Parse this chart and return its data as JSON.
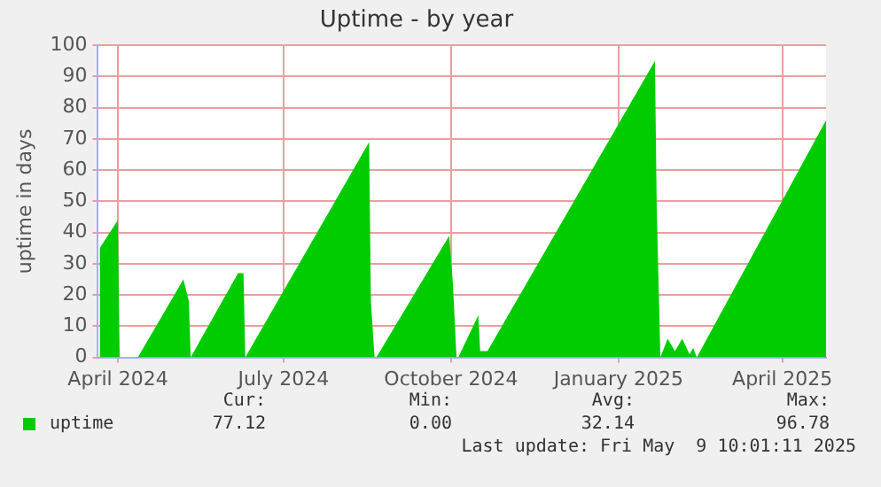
{
  "chart_data": {
    "type": "area",
    "title": "Uptime - by year",
    "ylabel": "uptime in days",
    "x": [
      "2024-04-05",
      "2024-04-15",
      "2024-04-16",
      "2024-04-26",
      "2024-05-21",
      "2024-05-24",
      "2024-05-25",
      "2024-06-20",
      "2024-06-23",
      "2024-06-24",
      "2024-08-31",
      "2024-09-01",
      "2024-09-03",
      "2024-09-04",
      "2024-10-14",
      "2024-10-16",
      "2024-10-18",
      "2024-10-19",
      "2024-10-30",
      "2024-10-31",
      "2024-11-04",
      "2025-02-04",
      "2025-02-05",
      "2025-02-07",
      "2025-02-11",
      "2025-02-15",
      "2025-02-19",
      "2025-02-23",
      "2025-02-25",
      "2025-02-27",
      "2025-05-09"
    ],
    "series": [
      {
        "name": "uptime",
        "color": "#00cc00",
        "values": [
          35,
          44,
          0,
          0,
          25,
          18,
          0,
          27,
          27,
          0,
          69,
          18,
          0,
          0,
          39,
          24,
          0,
          0,
          13.5,
          2,
          2,
          95,
          48,
          0,
          6,
          2,
          6,
          1,
          3,
          0,
          76
        ]
      }
    ],
    "xlim": [
      "2024-04-04",
      "2025-05-09"
    ],
    "xticks": [
      {
        "value": "2024-04-15",
        "label": "April 2024"
      },
      {
        "value": "2024-07-15",
        "label": "July 2024"
      },
      {
        "value": "2024-10-15",
        "label": "October 2024"
      },
      {
        "value": "2025-01-15",
        "label": "January 2025"
      },
      {
        "value": "2025-04-15",
        "label": "April 2025"
      }
    ],
    "ylim": [
      0,
      100
    ],
    "yticks": [
      0,
      10,
      20,
      30,
      40,
      50,
      60,
      70,
      80,
      90,
      100
    ],
    "grid": true,
    "legend": "bottom left",
    "annotations": [
      "Cur:",
      "Min:",
      "Avg:",
      "Max:",
      "77.12",
      "0.00",
      "32.14",
      "96.78",
      "Last update: Fri May  9 10:01:11 2025"
    ]
  }
}
